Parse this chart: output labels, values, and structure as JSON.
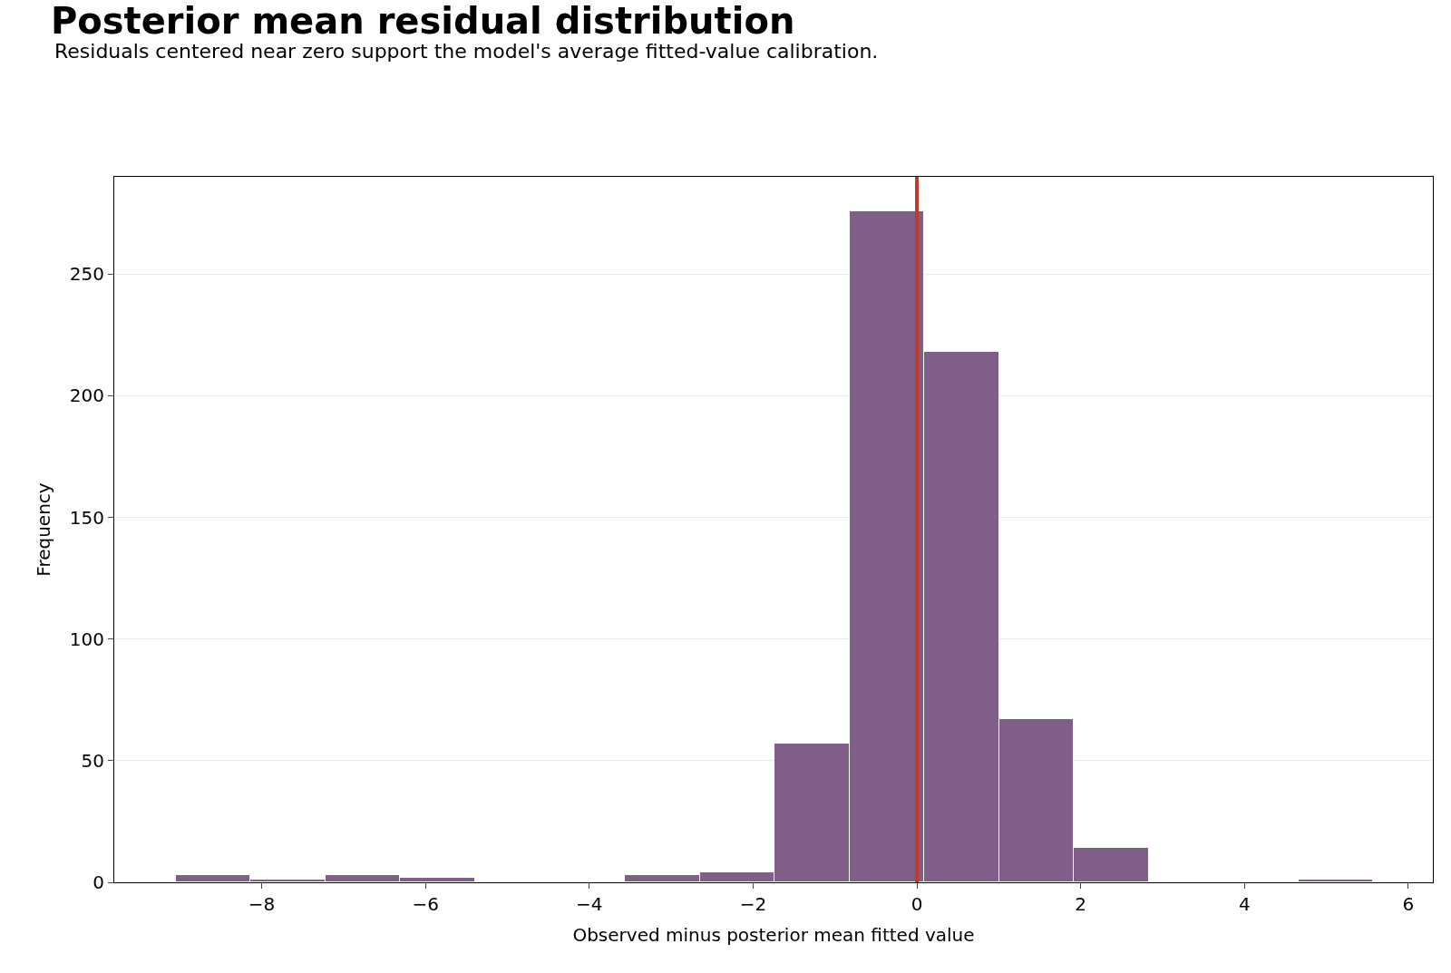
{
  "chart_data": {
    "type": "histogram",
    "title": "Posterior mean residual distribution",
    "subtitle": "Residuals centered near zero support the model's average fitted-value calibration.",
    "xlabel": "Observed minus posterior mean fitted value",
    "ylabel": "Frequency",
    "bins": [
      -9.05,
      -8.136,
      -7.222,
      -6.308,
      -5.394,
      -4.48,
      -3.566,
      -2.652,
      -1.738,
      -0.824,
      0.09,
      1.004,
      1.918,
      2.832,
      3.746,
      4.66,
      5.574
    ],
    "values": [
      3,
      1,
      3,
      2,
      0,
      0,
      3,
      4,
      57,
      276,
      218,
      67,
      14,
      0,
      0,
      1
    ],
    "color": "#7f5f87",
    "xlim": [
      -9.8,
      6.3
    ],
    "xticks": [
      {
        "value": -8,
        "label": "−8"
      },
      {
        "value": -6,
        "label": "−6"
      },
      {
        "value": -4,
        "label": "−4"
      },
      {
        "value": -2,
        "label": "−2"
      },
      0,
      2,
      4,
      6
    ],
    "ylim": [
      0,
      290
    ],
    "yticks": [
      0,
      50,
      100,
      150,
      200,
      250
    ],
    "grid": "y",
    "ref_lines": [
      {
        "axis": "x",
        "value": 0,
        "color": "#c0392b"
      }
    ]
  }
}
